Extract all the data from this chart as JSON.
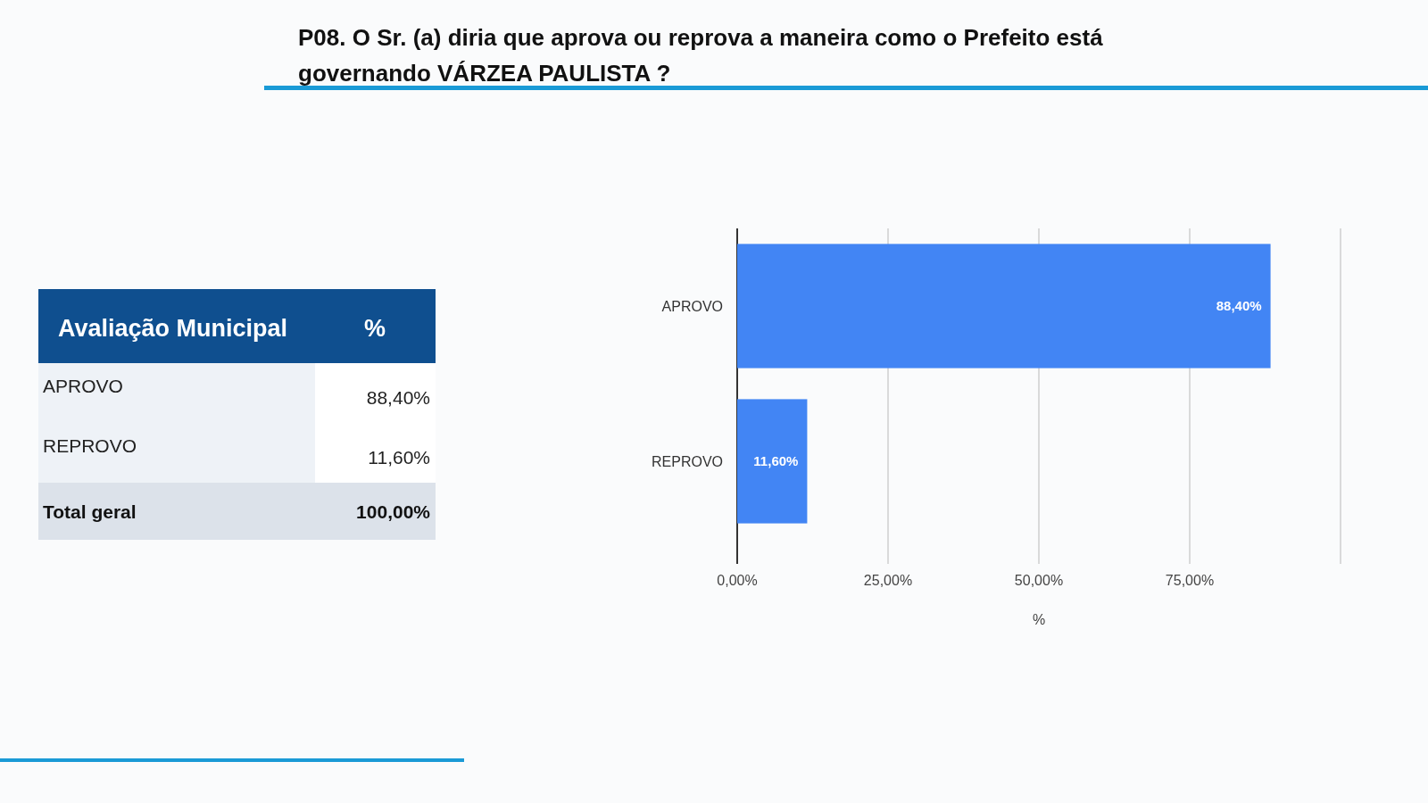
{
  "chart_data": {
    "type": "bar",
    "orientation": "horizontal",
    "title": "P08. O Sr. (a) diria que aprova ou reprova a maneira como o Prefeito está governando VÁRZEA PAULISTA ?",
    "xlabel": "%",
    "categories": [
      "APROVO",
      "REPROVO"
    ],
    "values": [
      88.4,
      11.6
    ],
    "value_labels": [
      "88,40%",
      "11,60%"
    ],
    "color": "#4285f4",
    "xlim": [
      0,
      100
    ],
    "xticks": [
      {
        "value": 0,
        "label": "0,00%"
      },
      {
        "value": 25,
        "label": "25,00%"
      },
      {
        "value": 50,
        "label": "50,00%"
      },
      {
        "value": 75,
        "label": "75,00%"
      },
      {
        "value": 100,
        "label": null
      }
    ],
    "grid": "x",
    "annotations": [
      "Avaliação Municipal",
      "%",
      "Total geral",
      "100,00%"
    ]
  }
}
